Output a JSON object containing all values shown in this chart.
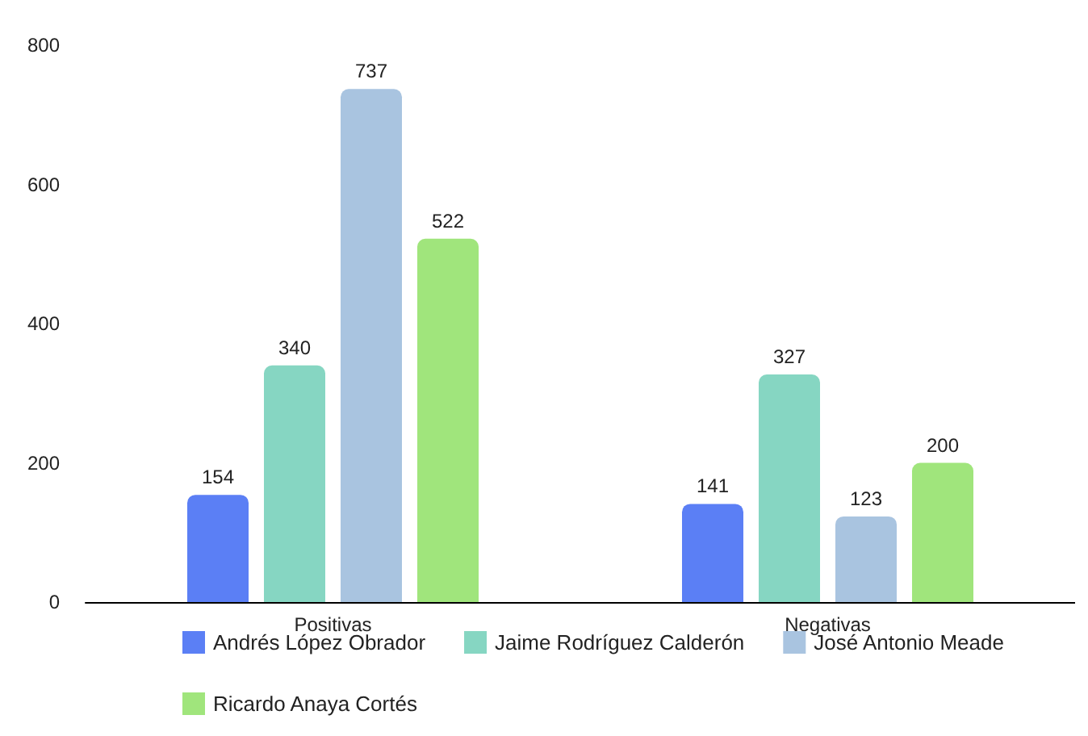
{
  "chart_data": {
    "type": "bar",
    "categories": [
      "Positivas",
      "Negativas"
    ],
    "series": [
      {
        "name": "Andrés López Obrador",
        "color": "#5b7ff5",
        "values": [
          154,
          141
        ]
      },
      {
        "name": "Jaime Rodríguez Calderón",
        "color": "#86d6c2",
        "values": [
          340,
          327
        ]
      },
      {
        "name": "José Antonio Meade",
        "color": "#a9c4e0",
        "values": [
          737,
          123
        ]
      },
      {
        "name": "Ricardo Anaya Cortés",
        "color": "#a0e57c",
        "values": [
          522,
          200
        ]
      }
    ],
    "ylim": [
      0,
      800
    ],
    "yticks": [
      0,
      200,
      400,
      600,
      800
    ],
    "grid": false,
    "legend": "bottom",
    "data_labels": true
  }
}
